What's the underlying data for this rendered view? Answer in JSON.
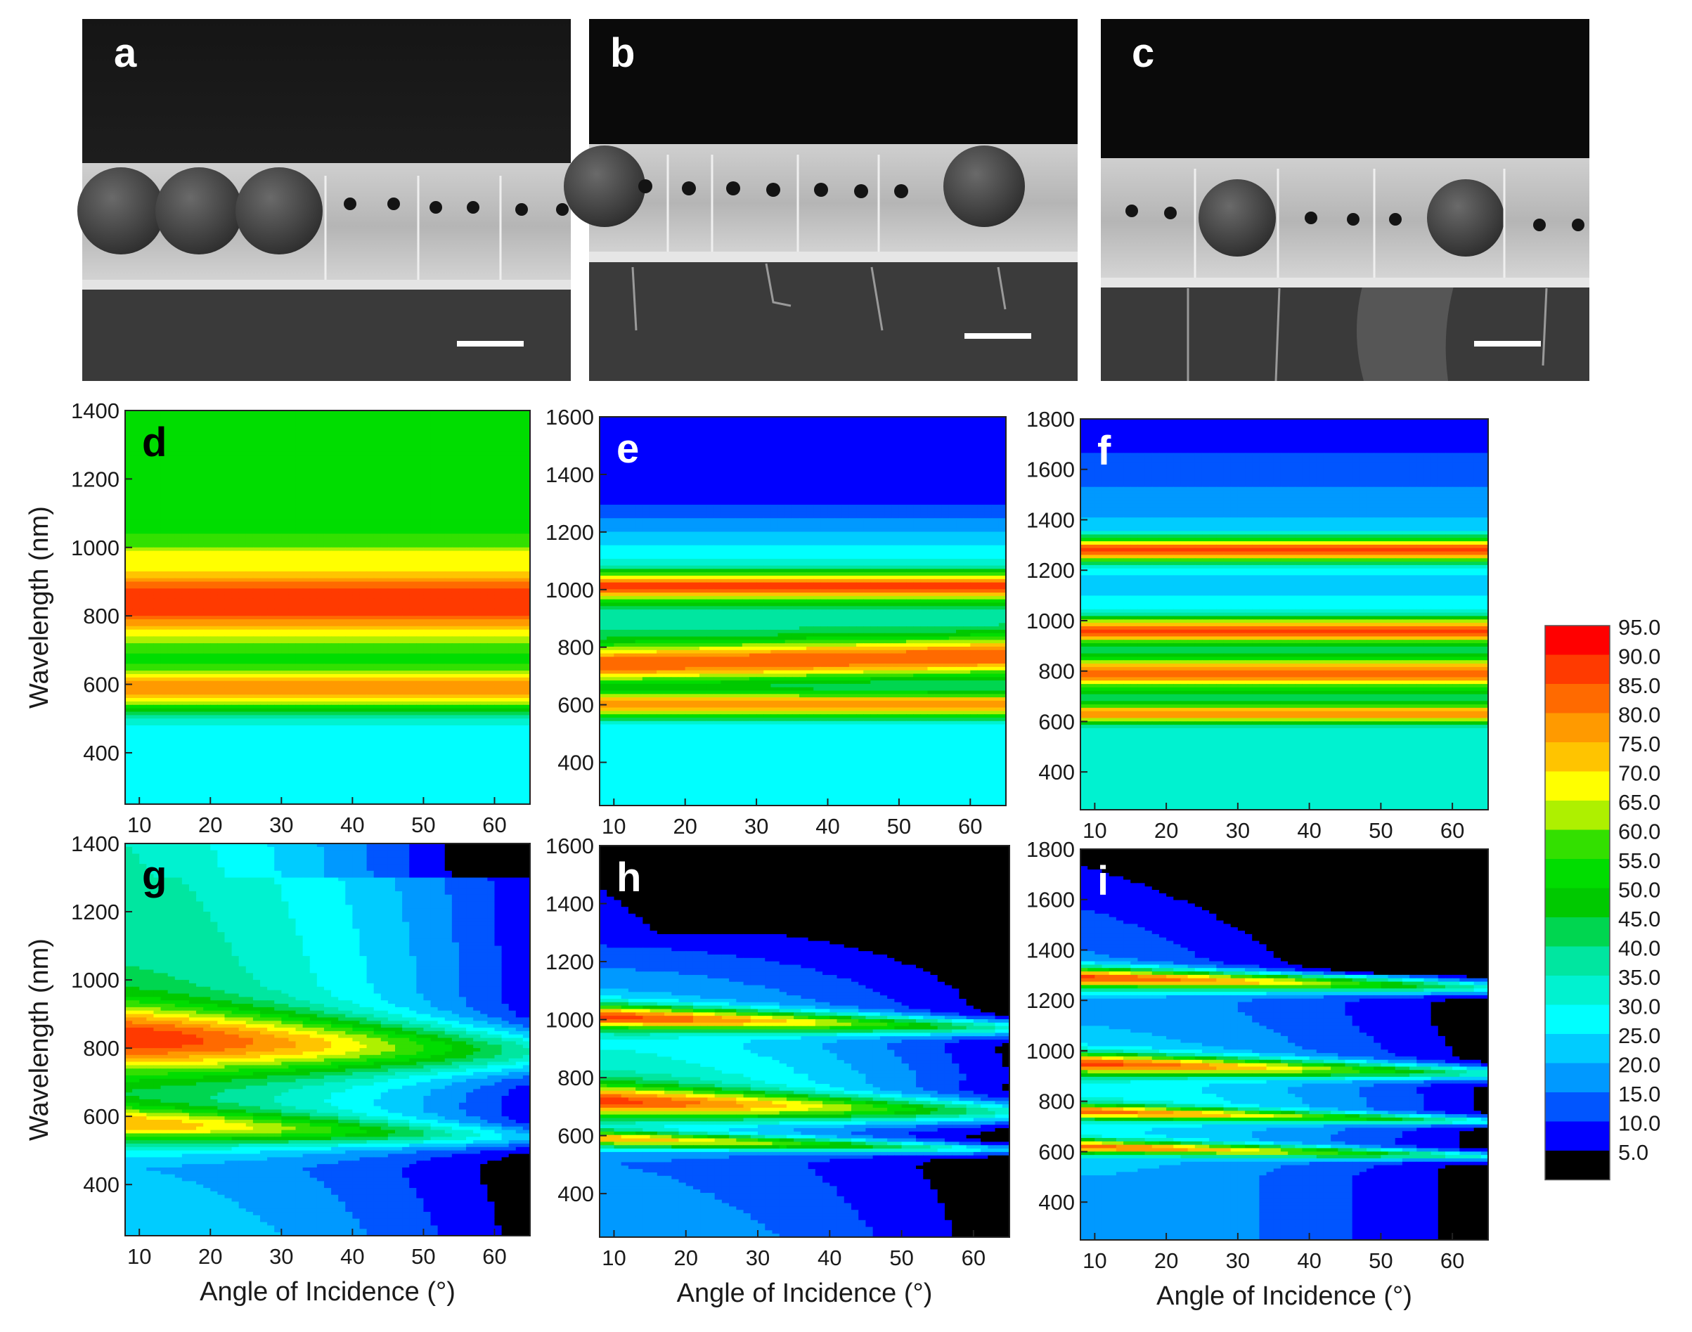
{
  "figure": {
    "sem_panels": [
      {
        "label": "a"
      },
      {
        "label": "b"
      },
      {
        "label": "c"
      }
    ],
    "colorbar": {
      "ticks": [
        "95.0",
        "90.0",
        "85.0",
        "80.0",
        "75.0",
        "70.0",
        "65.0",
        "60.0",
        "55.0",
        "50.0",
        "45.0",
        "40.0",
        "35.0",
        "30.0",
        "25.0",
        "20.0",
        "15.0",
        "10.0",
        "5.0"
      ],
      "colors": [
        "#ff0000",
        "#ff3a00",
        "#ff6a00",
        "#ff9a00",
        "#ffc400",
        "#ffff00",
        "#aef000",
        "#33e000",
        "#00dd00",
        "#00c900",
        "#00d650",
        "#00e6a0",
        "#00f2d0",
        "#00ffff",
        "#00ccff",
        "#0099ff",
        "#0055ff",
        "#0000ff",
        "#000000"
      ]
    }
  },
  "chart_data": [
    {
      "type": "heatmap",
      "label": "d",
      "ylabel": "Wavelength (nm)",
      "xlabel": "",
      "xlim": [
        8,
        65
      ],
      "ylim": [
        250,
        1400
      ],
      "xticks": [
        "10",
        "20",
        "30",
        "40",
        "50",
        "60"
      ],
      "yticks": [
        "400",
        "600",
        "800",
        "1000",
        "1200",
        "1400"
      ],
      "bands": [
        {
          "center": 840,
          "width": 70,
          "peak": 95,
          "trend": "flat"
        },
        {
          "center": 590,
          "width": 40,
          "peak": 85,
          "trend": "flat"
        },
        {
          "center": 960,
          "width": 25,
          "peak": 75,
          "trend": "flat"
        }
      ],
      "background": [
        [
          250,
          30
        ],
        [
          450,
          30
        ],
        [
          550,
          45
        ],
        [
          700,
          55
        ],
        [
          1000,
          60
        ],
        [
          1400,
          55
        ]
      ]
    },
    {
      "type": "heatmap",
      "label": "e",
      "ylabel": "",
      "xlabel": "",
      "xlim": [
        8,
        65
      ],
      "ylim": [
        250,
        1600
      ],
      "xticks": [
        "10",
        "20",
        "30",
        "40",
        "50",
        "60"
      ],
      "yticks": [
        "400",
        "600",
        "800",
        "1000",
        "1200",
        "1400",
        "1600"
      ],
      "bands": [
        {
          "center": 1010,
          "width": 35,
          "peak": 92,
          "trend": "flat"
        },
        {
          "center": 740,
          "width": 45,
          "peak": 90,
          "trend": "rising"
        },
        {
          "center": 600,
          "width": 30,
          "peak": 85,
          "trend": "flat"
        }
      ],
      "background": [
        [
          250,
          35
        ],
        [
          500,
          30
        ],
        [
          800,
          45
        ],
        [
          1100,
          35
        ],
        [
          1300,
          15
        ],
        [
          1600,
          10
        ]
      ]
    },
    {
      "type": "heatmap",
      "label": "f",
      "ylabel": "",
      "xlabel": "",
      "xlim": [
        8,
        65
      ],
      "ylim": [
        250,
        1800
      ],
      "xticks": [
        "10",
        "20",
        "30",
        "40",
        "50",
        "60"
      ],
      "yticks": [
        "400",
        "600",
        "800",
        "1000",
        "1200",
        "1400",
        "1600",
        "1800"
      ],
      "bands": [
        {
          "center": 1280,
          "width": 35,
          "peak": 92,
          "trend": "flat"
        },
        {
          "center": 960,
          "width": 35,
          "peak": 92,
          "trend": "flat"
        },
        {
          "center": 790,
          "width": 40,
          "peak": 88,
          "trend": "flat"
        },
        {
          "center": 630,
          "width": 25,
          "peak": 85,
          "trend": "flat"
        }
      ],
      "background": [
        [
          250,
          35
        ],
        [
          500,
          35
        ],
        [
          800,
          45
        ],
        [
          1100,
          30
        ],
        [
          1400,
          25
        ],
        [
          1800,
          10
        ]
      ]
    },
    {
      "type": "heatmap",
      "label": "g",
      "ylabel": "Wavelength (nm)",
      "xlabel": "Angle of Incidence (°)",
      "xlim": [
        8,
        65
      ],
      "ylim": [
        250,
        1400
      ],
      "xticks": [
        "10",
        "20",
        "30",
        "40",
        "50",
        "60"
      ],
      "yticks": [
        "400",
        "600",
        "800",
        "1000",
        "1200",
        "1400"
      ],
      "bands": [
        {
          "center": 830,
          "width": 70,
          "peak": 95,
          "trend": "fading"
        },
        {
          "center": 580,
          "width": 35,
          "peak": 80,
          "trend": "fading"
        }
      ],
      "background": [
        [
          250,
          30
        ],
        [
          450,
          25
        ],
        [
          600,
          45
        ],
        [
          1000,
          45
        ],
        [
          1400,
          40
        ]
      ]
    },
    {
      "type": "heatmap",
      "label": "h",
      "ylabel": "",
      "xlabel": "Angle of Incidence (°)",
      "xlim": [
        8,
        65
      ],
      "ylim": [
        250,
        1600
      ],
      "xticks": [
        "10",
        "20",
        "30",
        "40",
        "50",
        "60"
      ],
      "yticks": [
        "400",
        "600",
        "800",
        "1000",
        "1200",
        "1400",
        "1600"
      ],
      "bands": [
        {
          "center": 1010,
          "width": 30,
          "peak": 92,
          "trend": "fading"
        },
        {
          "center": 720,
          "width": 40,
          "peak": 92,
          "trend": "fading"
        },
        {
          "center": 590,
          "width": 20,
          "peak": 80,
          "trend": "fading"
        }
      ],
      "background": [
        [
          250,
          25
        ],
        [
          500,
          20
        ],
        [
          800,
          40
        ],
        [
          1100,
          25
        ],
        [
          1300,
          12
        ],
        [
          1600,
          8
        ]
      ]
    },
    {
      "type": "heatmap",
      "label": "i",
      "ylabel": "",
      "xlabel": "Angle of Incidence (°)",
      "xlim": [
        8,
        65
      ],
      "ylim": [
        250,
        1800
      ],
      "xticks": [
        "10",
        "20",
        "30",
        "40",
        "50",
        "60"
      ],
      "yticks": [
        "400",
        "600",
        "800",
        "1000",
        "1200",
        "1400",
        "1600",
        "1800"
      ],
      "bands": [
        {
          "center": 1290,
          "width": 30,
          "peak": 92,
          "trend": "fading"
        },
        {
          "center": 950,
          "width": 30,
          "peak": 92,
          "trend": "fading"
        },
        {
          "center": 760,
          "width": 20,
          "peak": 88,
          "trend": "fading"
        },
        {
          "center": 620,
          "width": 20,
          "peak": 88,
          "trend": "fading"
        }
      ],
      "background": [
        [
          250,
          25
        ],
        [
          500,
          25
        ],
        [
          800,
          35
        ],
        [
          1100,
          25
        ],
        [
          1400,
          20
        ],
        [
          1800,
          8
        ]
      ]
    }
  ]
}
